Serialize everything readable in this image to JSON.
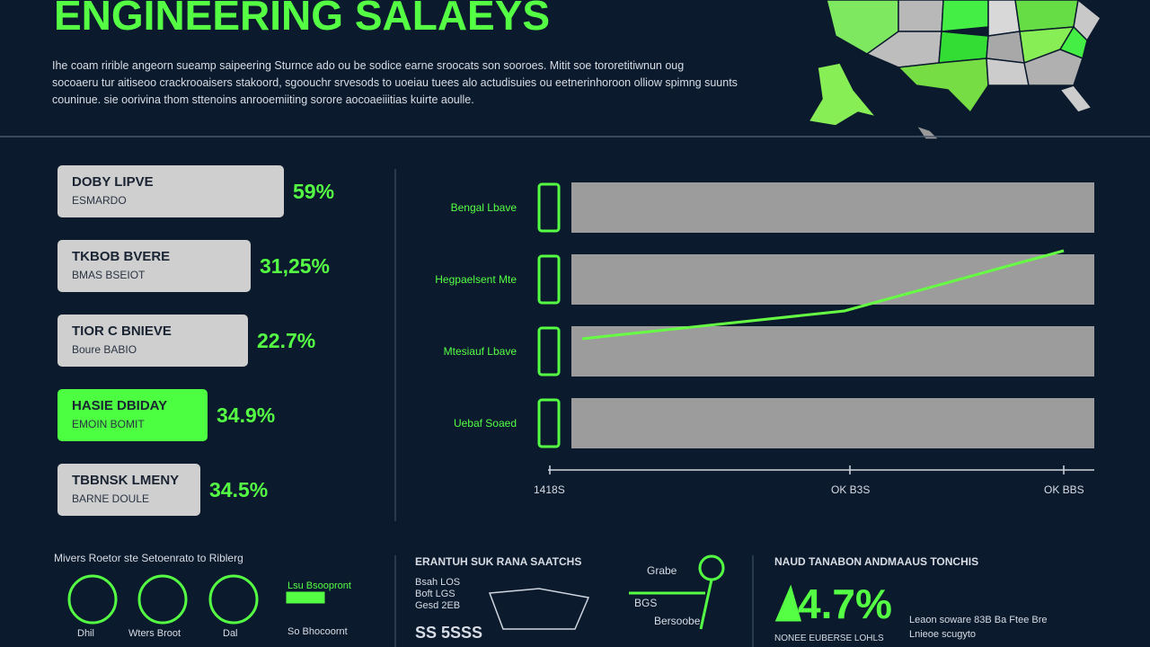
{
  "header": {
    "title": "ENGINEERING SALAEYS",
    "paragraph": [
      "Ihe coam ririble angeorn sueamp saipeering Sturnce ado ou be sodice earne sroocats son sooroes. Mitit soe tororetitiwnun oug",
      "socoaeru tur aitiseoo crackrooaisers stakoord, sgoouchr srvesods to uoeiau tuees alo actudisuies ou eetnerinhoroon olliow spimng suunts",
      "couninue. sie oorivina thom sttenoins anrooemiiting sorore aocoaeiiitias kuirte aoulle."
    ]
  },
  "rankings": [
    {
      "name": "DOBY LIPVE",
      "sub": "ESMARDO",
      "value": "59%"
    },
    {
      "name": "TKBOB BVERE",
      "sub": "BMAS BSEIOT",
      "value": "31,25%"
    },
    {
      "name": "TIOR C BNIEVE",
      "sub": "Boure BABIO",
      "value": "22.7%"
    },
    {
      "name": "HASIE DBIDAY",
      "sub": "EMOIN BOMIT",
      "value": "34.9%"
    },
    {
      "name": "TBBNSK LMENY",
      "sub": "BARNE DOULE",
      "value": "34.5%"
    }
  ],
  "trend": {
    "rows": [
      "Bengal Lbave",
      "Hegpaelsent Mte",
      "Mtesiauf Lbave",
      "Uebaf Soaed"
    ],
    "axis": [
      "1418S",
      "OK B3S",
      "OK BBS"
    ]
  },
  "footer": {
    "left": {
      "heading": "Mivers Roetor ste Setoenrato to Riblerg",
      "icons": [
        "Dhil",
        "Wters Broot",
        "Dal"
      ],
      "notes": [
        "Lsu Bsoopront",
        "So Bhocoornt"
      ]
    },
    "middle": {
      "heading": "ERANTUH SUK RANA SAATCHS",
      "lines": [
        "Bsah LOS",
        "Boft LGS",
        "Gesd 2EB"
      ],
      "big": "SS 5SSS",
      "labels": [
        "Grabe",
        "BGS",
        "Bersoobe"
      ]
    },
    "right": {
      "heading": "NAUD TANABON ANDMAAUS TONCHIS",
      "big": "4.7%",
      "caption": "NONEE EUBERSE LOHLS",
      "notes": [
        "Leaon soware 83B Ba Ftee Bre",
        "Lnieoe scugyto"
      ]
    }
  }
}
